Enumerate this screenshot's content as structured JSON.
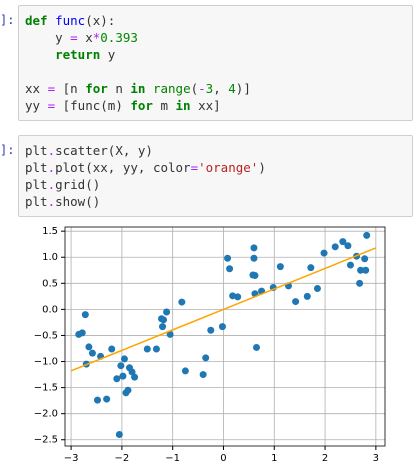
{
  "cells": [
    {
      "prompt": "]:",
      "lines": [
        [
          {
            "t": "def",
            "k": "kw"
          },
          {
            "t": " "
          },
          {
            "t": "func",
            "k": "fn"
          },
          {
            "t": "(x):"
          }
        ],
        [
          {
            "t": "    y "
          },
          {
            "t": "=",
            "k": "op"
          },
          {
            "t": " x"
          },
          {
            "t": "*",
            "k": "op"
          },
          {
            "t": "0.393",
            "k": "num"
          }
        ],
        [
          {
            "t": "    "
          },
          {
            "t": "return",
            "k": "kw"
          },
          {
            "t": " y"
          }
        ],
        [],
        [
          {
            "t": "xx "
          },
          {
            "t": "=",
            "k": "op"
          },
          {
            "t": " [n "
          },
          {
            "t": "for",
            "k": "kw"
          },
          {
            "t": " n "
          },
          {
            "t": "in",
            "k": "kw"
          },
          {
            "t": " "
          },
          {
            "t": "range",
            "k": "bi"
          },
          {
            "t": "("
          },
          {
            "t": "-",
            "k": "op"
          },
          {
            "t": "3",
            "k": "num"
          },
          {
            "t": ", "
          },
          {
            "t": "4",
            "k": "num"
          },
          {
            "t": ")]"
          }
        ],
        [
          {
            "t": "yy "
          },
          {
            "t": "=",
            "k": "op"
          },
          {
            "t": " [func(m) "
          },
          {
            "t": "for",
            "k": "kw"
          },
          {
            "t": " m "
          },
          {
            "t": "in",
            "k": "kw"
          },
          {
            "t": " xx]"
          }
        ]
      ]
    },
    {
      "prompt": "]:",
      "lines": [
        [
          {
            "t": "plt"
          },
          {
            "t": ".",
            "k": "op"
          },
          {
            "t": "scatter(X, y)"
          }
        ],
        [
          {
            "t": "plt"
          },
          {
            "t": ".",
            "k": "op"
          },
          {
            "t": "plot(xx, yy, color"
          },
          {
            "t": "=",
            "k": "op"
          },
          {
            "t": "'orange'",
            "k": "str"
          },
          {
            "t": ")"
          }
        ],
        [
          {
            "t": "plt"
          },
          {
            "t": ".",
            "k": "op"
          },
          {
            "t": "grid()"
          }
        ],
        [
          {
            "t": "plt"
          },
          {
            "t": ".",
            "k": "op"
          },
          {
            "t": "show()"
          }
        ]
      ]
    }
  ],
  "chart_data": {
    "type": "scatter",
    "grid": true,
    "xlim": [
      -3.12,
      3.18
    ],
    "ylim": [
      -2.62,
      1.58
    ],
    "xticks": [
      {
        "value": -3,
        "label": "−3"
      },
      {
        "value": -2,
        "label": "−2"
      },
      {
        "value": -1,
        "label": "−1"
      },
      0,
      1,
      2,
      3
    ],
    "yticks": [
      {
        "value": -2.5,
        "label": "−2.5"
      },
      {
        "value": -2,
        "label": "−2.0"
      },
      {
        "value": -1.5,
        "label": "−1.5"
      },
      {
        "value": -1,
        "label": "−1.0"
      },
      {
        "value": -0.5,
        "label": "−0.5"
      },
      {
        "value": 0,
        "label": "0.0"
      },
      {
        "value": 0.5,
        "label": "0.5"
      },
      {
        "value": 1,
        "label": "1.0"
      },
      {
        "value": 1.5,
        "label": "1.5"
      }
    ],
    "series": [
      {
        "kind": "scatter",
        "color": "#1f77b4",
        "x": [
          -2.85,
          -2.78,
          -2.72,
          -2.7,
          -2.65,
          -2.58,
          -2.42,
          -2.48,
          -2.3,
          -2.2,
          -2.1,
          -2.05,
          -2.02,
          -1.98,
          -1.95,
          -1.92,
          -1.88,
          -1.85,
          -1.8,
          -1.75,
          -1.5,
          -1.32,
          -1.22,
          -1.18,
          -1.2,
          -1.12,
          -1.05,
          -0.82,
          -0.75,
          -0.4,
          -0.35,
          -0.25,
          -0.02,
          0.08,
          0.12,
          0.18,
          0.28,
          0.58,
          0.6,
          0.6,
          0.62,
          0.65,
          0.62,
          0.75,
          0.98,
          1.12,
          1.28,
          1.42,
          1.65,
          1.72,
          1.85,
          1.98,
          2.2,
          2.35,
          2.45,
          2.5,
          2.62,
          2.68,
          2.7,
          2.8,
          2.78,
          2.82
        ],
        "values": [
          -0.48,
          -0.45,
          -0.1,
          -1.05,
          -0.72,
          -0.84,
          -0.9,
          -1.74,
          -1.72,
          -0.76,
          -1.33,
          -2.4,
          -1.08,
          -1.28,
          -0.95,
          -1.6,
          -1.55,
          -1.12,
          -1.2,
          -1.3,
          -0.76,
          -0.76,
          -0.18,
          -0.2,
          -0.33,
          -0.05,
          -0.48,
          0.14,
          -1.18,
          -1.25,
          -0.93,
          -0.4,
          -0.33,
          0.98,
          0.78,
          0.26,
          0.24,
          0.66,
          0.98,
          1.18,
          0.65,
          -0.73,
          0.3,
          0.35,
          0.42,
          0.82,
          0.45,
          0.15,
          0.25,
          0.8,
          0.4,
          1.08,
          1.2,
          1.3,
          1.22,
          0.85,
          1.02,
          0.5,
          0.75,
          0.75,
          0.97,
          1.42
        ]
      },
      {
        "kind": "line",
        "color": "orange",
        "x": [
          -3,
          -2,
          -1,
          0,
          1,
          2,
          3
        ],
        "values": [
          -1.179,
          -0.786,
          -0.393,
          0,
          0.393,
          0.786,
          1.179
        ]
      }
    ]
  }
}
